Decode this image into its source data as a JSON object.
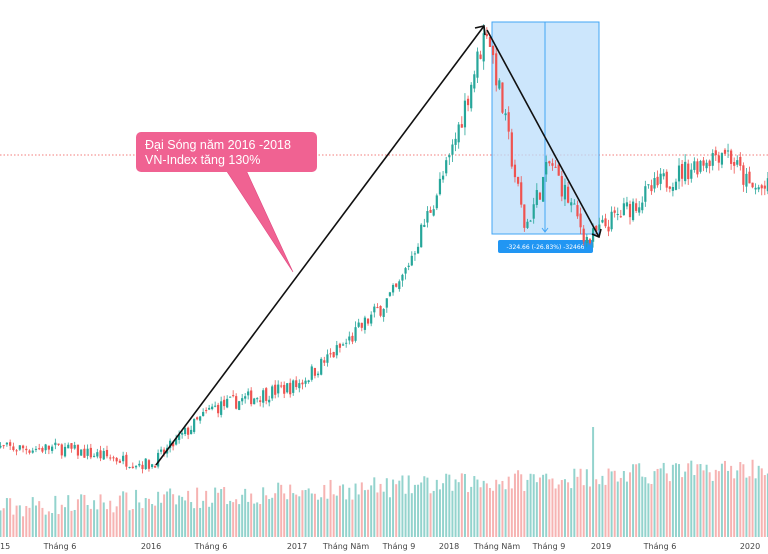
{
  "chart_data": {
    "type": "candlestick",
    "title": "",
    "xlabel": "",
    "ylabel": "",
    "x_tick_labels": [
      "15",
      "Tháng 6",
      "2016",
      "Tháng 6",
      "2017",
      "Tháng Năm",
      "Tháng 9",
      "2018",
      "Tháng Năm",
      "Tháng 9",
      "2019",
      "Tháng 6",
      "2020"
    ],
    "approx_price_points": [
      {
        "date": "2015-06",
        "value": 570
      },
      {
        "date": "2016-01",
        "value": 545
      },
      {
        "date": "2016-06",
        "value": 630
      },
      {
        "date": "2017-01",
        "value": 665
      },
      {
        "date": "2017-05",
        "value": 730
      },
      {
        "date": "2017-09",
        "value": 810
      },
      {
        "date": "2018-01",
        "value": 1000
      },
      {
        "date": "2018-04",
        "value": 1204
      },
      {
        "date": "2018-07",
        "value": 900
      },
      {
        "date": "2018-09",
        "value": 1000
      },
      {
        "date": "2018-12",
        "value": 880
      },
      {
        "date": "2019-01",
        "value": 900
      },
      {
        "date": "2019-06",
        "value": 970
      },
      {
        "date": "2019-11",
        "value": 1020
      },
      {
        "date": "2020-01",
        "value": 960
      }
    ],
    "grid": false,
    "annotations": {
      "callout_line1": "Đại Sóng năm 2016 -2018",
      "callout_line2": "VN-Index tăng 130%",
      "measure_label": "-324.66 (-26.83%) -32466"
    },
    "colors": {
      "up": "#26a69a",
      "down": "#ef5350",
      "callout": "#f06292",
      "measure_fill": "#bbdefb",
      "measure_stroke": "#42a5f5",
      "measure_label_bg": "#2196f3",
      "price_line": "#ef5350",
      "trend_arrow": "#111111"
    }
  }
}
